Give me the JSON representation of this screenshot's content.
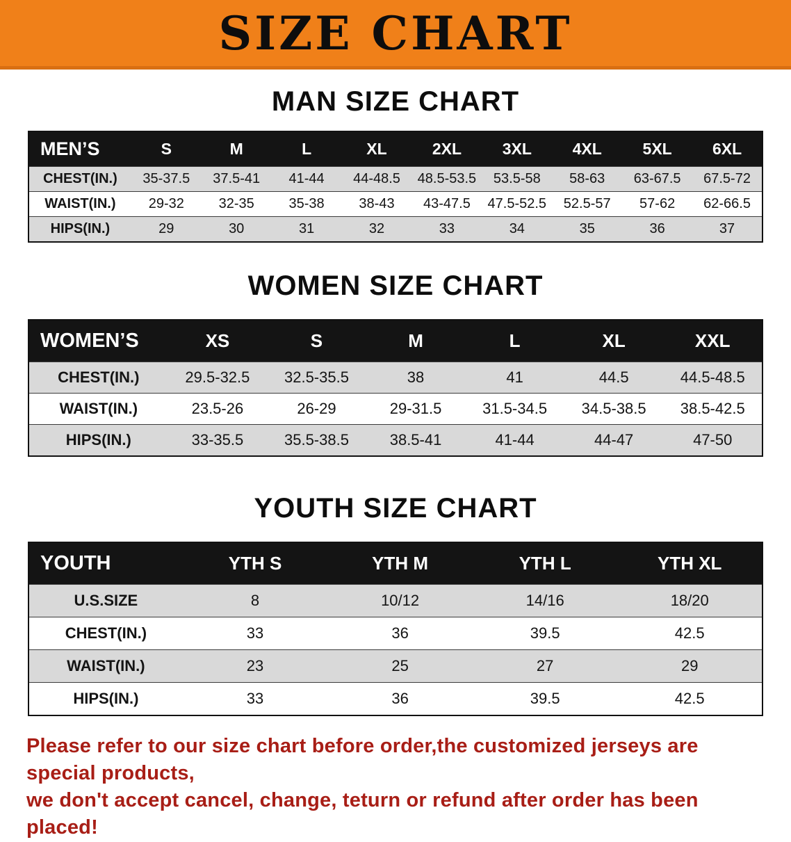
{
  "banner": {
    "title": "SIZE CHART"
  },
  "sections": [
    {
      "heading": "MAN SIZE CHART",
      "table": {
        "header": [
          "MEN’S",
          "S",
          "M",
          "L",
          "XL",
          "2XL",
          "3XL",
          "4XL",
          "5XL",
          "6XL"
        ],
        "rows": [
          [
            "CHEST(IN.)",
            "35-37.5",
            "37.5-41",
            "41-44",
            "44-48.5",
            "48.5-53.5",
            "53.5-58",
            "58-63",
            "63-67.5",
            "67.5-72"
          ],
          [
            "WAIST(IN.)",
            "29-32",
            "32-35",
            "35-38",
            "38-43",
            "43-47.5",
            "47.5-52.5",
            "52.5-57",
            "57-62",
            "62-66.5"
          ],
          [
            "HIPS(IN.)",
            "29",
            "30",
            "31",
            "32",
            "33",
            "34",
            "35",
            "36",
            "37"
          ]
        ]
      }
    },
    {
      "heading": "WOMEN SIZE CHART",
      "table": {
        "header": [
          "WOMEN’S",
          "XS",
          "S",
          "M",
          "L",
          "XL",
          "XXL"
        ],
        "rows": [
          [
            "CHEST(IN.)",
            "29.5-32.5",
            "32.5-35.5",
            "38",
            "41",
            "44.5",
            "44.5-48.5"
          ],
          [
            "WAIST(IN.)",
            "23.5-26",
            "26-29",
            "29-31.5",
            "31.5-34.5",
            "34.5-38.5",
            "38.5-42.5"
          ],
          [
            "HIPS(IN.)",
            "33-35.5",
            "35.5-38.5",
            "38.5-41",
            "41-44",
            "44-47",
            "47-50"
          ]
        ]
      }
    },
    {
      "heading": "YOUTH SIZE CHART",
      "table": {
        "header": [
          "YOUTH",
          "YTH S",
          "YTH M",
          "YTH L",
          "YTH XL"
        ],
        "rows": [
          [
            "U.S.SIZE",
            "8",
            "10/12",
            "14/16",
            "18/20"
          ],
          [
            "CHEST(IN.)",
            "33",
            "36",
            "39.5",
            "42.5"
          ],
          [
            "WAIST(IN.)",
            "23",
            "25",
            "27",
            "29"
          ],
          [
            "HIPS(IN.)",
            "33",
            "36",
            "39.5",
            "42.5"
          ]
        ]
      }
    }
  ],
  "disclaimer": {
    "line1": "Please refer to our size chart before order,the customized jerseys are special products,",
    "line2": "we don't accept cancel, change, teturn or refund after order has been placed!"
  },
  "colors": {
    "banner_bg": "#f08019",
    "header_bg": "#141414",
    "row_shade": "#d9d9d9",
    "disclaimer_color": "#a81e16"
  }
}
